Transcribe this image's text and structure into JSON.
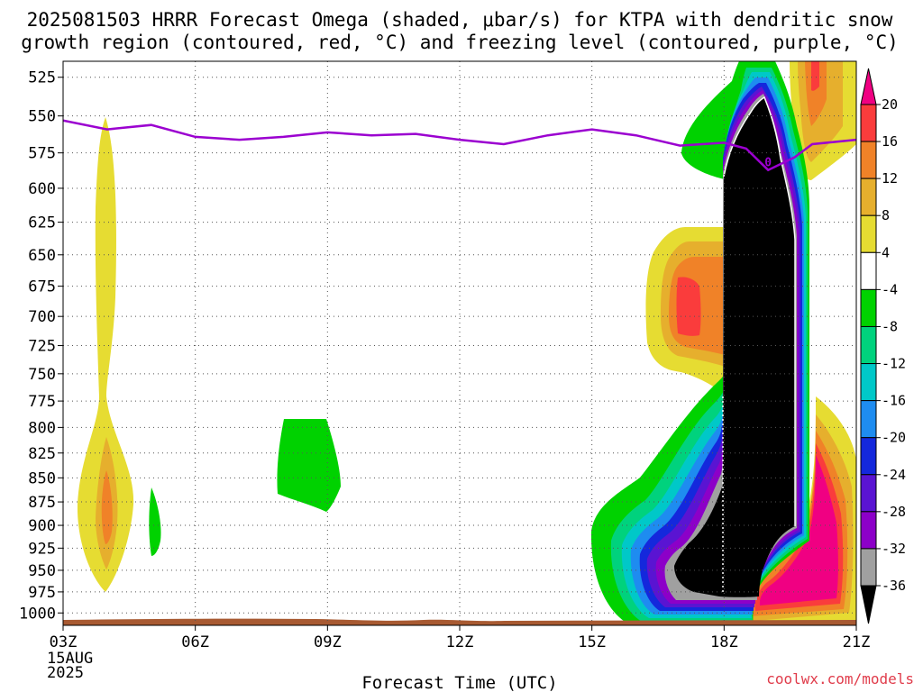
{
  "title_line1": "2025081503 HRRR Forecast Omega (shaded, μbar/s) for KTPA with dendritic snow",
  "title_line2": "growth region (contoured, red, °C) and freezing level (contoured, purple, °C)",
  "source_label": "coolwx.com/models",
  "chart_data": {
    "type": "heatmap",
    "title": "2025081503 HRRR Forecast Omega (shaded, μbar/s) for KTPA with dendritic snow growth region (contoured, red, °C) and freezing level (contoured, purple, °C)",
    "xlabel": "Forecast Time (UTC)",
    "ylabel": "",
    "x_range_hours": [
      3,
      21
    ],
    "y_range_hpa": [
      1015,
      515
    ],
    "y_scale": "log-pressure",
    "grid": true,
    "x_ticks": [
      {
        "hour": 3,
        "label": "03Z"
      },
      {
        "hour": 6,
        "label": "06Z"
      },
      {
        "hour": 9,
        "label": "09Z"
      },
      {
        "hour": 12,
        "label": "12Z"
      },
      {
        "hour": 15,
        "label": "15Z"
      },
      {
        "hour": 18,
        "label": "18Z"
      },
      {
        "hour": 21,
        "label": "21Z"
      }
    ],
    "x_date_label": [
      "15AUG",
      "2025"
    ],
    "y_ticks": [
      525,
      550,
      575,
      600,
      625,
      650,
      675,
      700,
      725,
      750,
      775,
      800,
      825,
      850,
      875,
      900,
      925,
      950,
      975,
      1000
    ],
    "colorbar": {
      "labels": [
        20,
        16,
        12,
        8,
        4,
        -4,
        -8,
        -12,
        -16,
        -20,
        -24,
        -28,
        -32,
        -36
      ],
      "bins": [
        {
          "range": "<-36",
          "color": "#000000"
        },
        {
          "range": "-36..-32",
          "color": "#a0a0a0"
        },
        {
          "range": "-32..-28",
          "color": "#8c00c8"
        },
        {
          "range": "-28..-24",
          "color": "#5a14d2"
        },
        {
          "range": "-24..-20",
          "color": "#1428dc"
        },
        {
          "range": "-20..-16",
          "color": "#1e8cf0"
        },
        {
          "range": "-16..-12",
          "color": "#00c8c8"
        },
        {
          "range": "-12..-8",
          "color": "#00d27d"
        },
        {
          "range": "-8..-4",
          "color": "#00d200"
        },
        {
          "range": "-4..4",
          "color": "#ffffff"
        },
        {
          "range": "4..8",
          "color": "#e6dc32"
        },
        {
          "range": "8..12",
          "color": "#e6af2d"
        },
        {
          "range": "12..16",
          "color": "#f08228"
        },
        {
          "range": "16..20",
          "color": "#fa3c3c"
        },
        {
          "range": ">20",
          "color": "#f00082"
        }
      ]
    },
    "freezing_level": {
      "label": "0",
      "color": "#9b00d0",
      "points": [
        [
          3.0,
          553
        ],
        [
          4.0,
          559
        ],
        [
          5.0,
          556
        ],
        [
          6.0,
          564
        ],
        [
          7.0,
          566
        ],
        [
          8.0,
          564
        ],
        [
          9.0,
          561
        ],
        [
          10.0,
          563
        ],
        [
          11.0,
          562
        ],
        [
          12.0,
          566
        ],
        [
          13.0,
          569
        ],
        [
          14.0,
          563
        ],
        [
          15.0,
          559
        ],
        [
          16.0,
          563
        ],
        [
          17.0,
          570
        ],
        [
          18.0,
          568
        ],
        [
          18.5,
          572
        ],
        [
          19.0,
          587
        ],
        [
          19.6,
          578
        ],
        [
          20.0,
          569
        ],
        [
          21.0,
          566
        ]
      ]
    },
    "features": [
      {
        "hour_range": [
          3.6,
          4.5
        ],
        "p_range": [
          555,
          980
        ],
        "min_omega": 12,
        "sign": "positive"
      },
      {
        "hour_range": [
          4.9,
          5.2
        ],
        "p_range": [
          870,
          940
        ],
        "min_omega": -4,
        "sign": "negative"
      },
      {
        "hour_range": [
          8.0,
          9.3
        ],
        "p_range": [
          795,
          890
        ],
        "min_omega": -8,
        "sign": "negative"
      },
      {
        "hour_range": [
          16.2,
          18.0
        ],
        "p_range": [
          645,
          760
        ],
        "min_omega": 16,
        "sign": "positive"
      },
      {
        "hour_range": [
          15.0,
          21.0
        ],
        "p_range": [
          515,
          1012
        ],
        "min_omega": -36,
        "sign": "negative",
        "note": "main column"
      },
      {
        "hour_range": [
          19.6,
          21.0
        ],
        "p_range": [
          515,
          1012
        ],
        "min_omega": 20,
        "sign": "positive"
      }
    ]
  }
}
